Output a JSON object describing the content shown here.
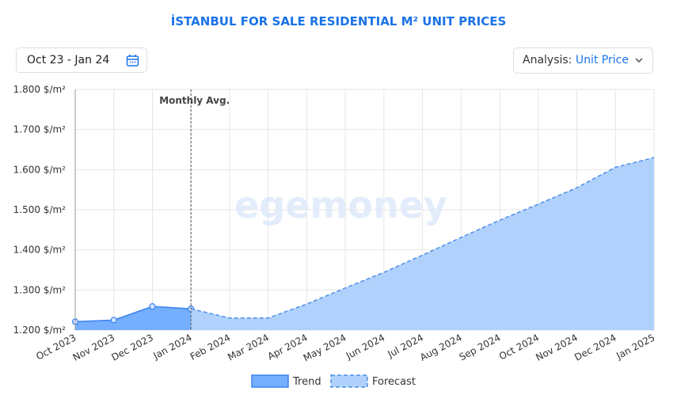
{
  "header": {
    "title": "İSTANBUL FOR SALE RESIDENTIAL M² UNIT PRICES",
    "date_range": "Oct 23 - Jan 24",
    "analysis_label": "Analysis:",
    "analysis_value": "Unit Price"
  },
  "chart_data": {
    "type": "area",
    "watermark": "egemoney",
    "annotation": "Monthly Avg.",
    "annotation_category": 3,
    "categories": [
      "Oct 2023",
      "Nov 2023",
      "Dec 2023",
      "Jan 2024",
      "Feb 2024",
      "Mar 2024",
      "Apr 2024",
      "May 2024",
      "Jun 2024",
      "Jul 2024",
      "Aug 2024",
      "Sep 2024",
      "Oct 2024",
      "Nov 2024",
      "Dec 2024",
      "Jan 2025"
    ],
    "series": [
      {
        "name": "Trend",
        "color": "#74aefc",
        "line_color": "#3b82f0",
        "dashed": false,
        "markers": true,
        "values": [
          1221,
          1225,
          1259,
          1253,
          null,
          null,
          null,
          null,
          null,
          null,
          null,
          null,
          null,
          null,
          null,
          null
        ]
      },
      {
        "name": "Forecast",
        "color": "#b0d1fc",
        "line_color": "#4d8fe8",
        "dashed": true,
        "markers": false,
        "values": [
          null,
          null,
          null,
          1253,
          1230,
          1230,
          1265,
          1305,
          1344,
          1387,
          1431,
          1474,
          1514,
          1555,
          1606,
          1630
        ]
      }
    ],
    "ylim": [
      1200,
      1800
    ],
    "yticks": [
      {
        "value": 1200,
        "label": "1.200 $/m²"
      },
      {
        "value": 1300,
        "label": "1.300 $/m²"
      },
      {
        "value": 1400,
        "label": "1.400 $/m²"
      },
      {
        "value": 1500,
        "label": "1.500 $/m²"
      },
      {
        "value": 1600,
        "label": "1.600 $/m²"
      },
      {
        "value": 1700,
        "label": "1.700 $/m²"
      },
      {
        "value": 1800,
        "label": "1.800 $/m²"
      }
    ],
    "grid": true,
    "legend": "bottom"
  }
}
